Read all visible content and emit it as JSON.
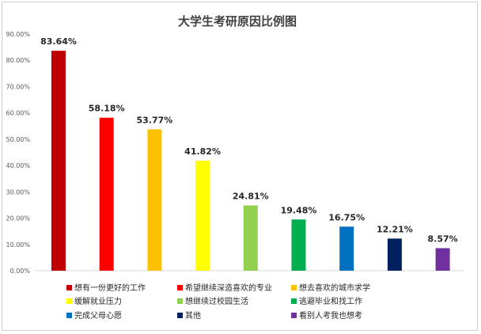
{
  "chart_data": {
    "type": "bar",
    "title": "大学生考研原因比例图",
    "xlabel": "",
    "ylabel": "",
    "ylim": [
      0,
      90
    ],
    "yticks": [
      "0.00%",
      "10.00%",
      "20.00%",
      "30.00%",
      "40.00%",
      "50.00%",
      "60.00%",
      "70.00%",
      "80.00%",
      "90.00%"
    ],
    "grid": false,
    "legend_position": "bottom",
    "categories": [
      "想有一份更好的工作",
      "希望继续深造喜欢的专业",
      "想去喜欢的城市求学",
      "缓解就业压力",
      "想继续过校园生活",
      "逃避毕业和找工作",
      "完成父母心愿",
      "其他",
      "看别人考我也想考"
    ],
    "values": [
      83.64,
      58.18,
      53.77,
      41.82,
      24.81,
      19.48,
      16.75,
      12.21,
      8.57
    ],
    "data_labels": [
      "83.64%",
      "58.18%",
      "53.77%",
      "41.82%",
      "24.81%",
      "19.48%",
      "16.75%",
      "12.21%",
      "8.57%"
    ],
    "colors": [
      "#c00000",
      "#ff0000",
      "#ffc000",
      "#ffff00",
      "#92d050",
      "#00b050",
      "#0070c0",
      "#002060",
      "#7030a0"
    ]
  }
}
